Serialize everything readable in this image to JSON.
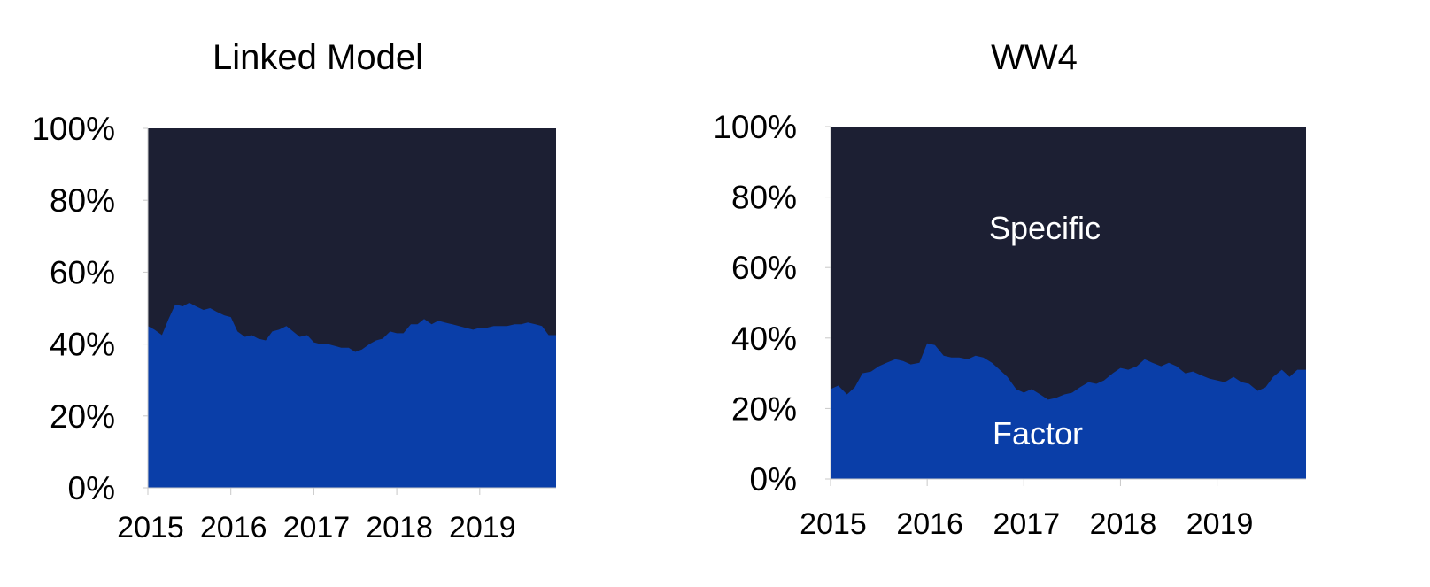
{
  "chart_data": [
    {
      "type": "area",
      "title": "Linked Model",
      "stacked": true,
      "xlabel": "",
      "ylabel": "",
      "x_tick_labels": [
        "2015",
        "2016",
        "2017",
        "2018",
        "2019"
      ],
      "x_tick_values": [
        2015,
        2016,
        2017,
        2018,
        2019
      ],
      "xlim": [
        2015,
        2019.92
      ],
      "ylim": [
        0,
        100
      ],
      "y_tick_labels": [
        "0%",
        "20%",
        "40%",
        "60%",
        "80%",
        "100%"
      ],
      "y_tick_values": [
        0,
        20,
        40,
        60,
        80,
        100
      ],
      "grid": false,
      "legend": "none",
      "series": [
        {
          "name": "",
          "color": "#0a3ea8",
          "x": [
            2015.0,
            2015.08,
            2015.17,
            2015.25,
            2015.33,
            2015.42,
            2015.5,
            2015.58,
            2015.67,
            2015.75,
            2015.83,
            2015.92,
            2016.0,
            2016.08,
            2016.17,
            2016.25,
            2016.33,
            2016.42,
            2016.5,
            2016.58,
            2016.67,
            2016.75,
            2016.83,
            2016.92,
            2017.0,
            2017.08,
            2017.17,
            2017.25,
            2017.33,
            2017.42,
            2017.5,
            2017.58,
            2017.67,
            2017.75,
            2017.83,
            2017.92,
            2018.0,
            2018.08,
            2018.17,
            2018.25,
            2018.33,
            2018.42,
            2018.5,
            2018.58,
            2018.67,
            2018.75,
            2018.83,
            2018.92,
            2019.0,
            2019.08,
            2019.17,
            2019.25,
            2019.33,
            2019.42,
            2019.5,
            2019.58,
            2019.67,
            2019.75,
            2019.83,
            2019.92
          ],
          "values": [
            45,
            44,
            42.5,
            47,
            51,
            50.5,
            51.5,
            50.5,
            49.5,
            50,
            49,
            48,
            47.5,
            43.5,
            42,
            42.5,
            41.5,
            41,
            43.5,
            44,
            45,
            43.5,
            42,
            42.5,
            40.5,
            40,
            40,
            39.5,
            39,
            39,
            37.8,
            38.5,
            40,
            41,
            41.5,
            43.5,
            43,
            43,
            45.5,
            45.5,
            47,
            45.5,
            46.5,
            46,
            45.5,
            45,
            44.5,
            44,
            44.5,
            44.5,
            45,
            45,
            45,
            45.5,
            45.5,
            46,
            45.5,
            45,
            42.5,
            42.5
          ]
        },
        {
          "name": "",
          "color": "#1c1f33",
          "values": "remainder to 100%"
        }
      ]
    },
    {
      "type": "area",
      "title": "WW4",
      "stacked": true,
      "xlabel": "",
      "ylabel": "",
      "x_tick_labels": [
        "2015",
        "2016",
        "2017",
        "2018",
        "2019"
      ],
      "x_tick_values": [
        2015,
        2016,
        2017,
        2018,
        2019
      ],
      "xlim": [
        2015,
        2019.92
      ],
      "ylim": [
        0,
        100
      ],
      "y_tick_labels": [
        "0%",
        "20%",
        "40%",
        "60%",
        "80%",
        "100%"
      ],
      "y_tick_values": [
        0,
        20,
        40,
        60,
        80,
        100
      ],
      "grid": false,
      "legend": "none",
      "annotations": [
        "Specific",
        "Factor"
      ],
      "series": [
        {
          "name": "Factor",
          "color": "#0a3ea8",
          "x": [
            2015.0,
            2015.08,
            2015.17,
            2015.25,
            2015.33,
            2015.42,
            2015.5,
            2015.58,
            2015.67,
            2015.75,
            2015.83,
            2015.92,
            2016.0,
            2016.08,
            2016.17,
            2016.25,
            2016.33,
            2016.42,
            2016.5,
            2016.58,
            2016.67,
            2016.75,
            2016.83,
            2016.92,
            2017.0,
            2017.08,
            2017.17,
            2017.25,
            2017.33,
            2017.42,
            2017.5,
            2017.58,
            2017.67,
            2017.75,
            2017.83,
            2017.92,
            2018.0,
            2018.08,
            2018.17,
            2018.25,
            2018.33,
            2018.42,
            2018.5,
            2018.58,
            2018.67,
            2018.75,
            2018.83,
            2018.92,
            2019.0,
            2019.08,
            2019.17,
            2019.25,
            2019.33,
            2019.42,
            2019.5,
            2019.58,
            2019.67,
            2019.75,
            2019.83,
            2019.92
          ],
          "values": [
            25.5,
            26.5,
            24,
            26,
            30,
            30.5,
            32,
            33,
            34,
            33.5,
            32.5,
            33,
            38.5,
            38,
            35,
            34.5,
            34.5,
            34,
            35,
            34.5,
            33,
            31,
            29,
            25.5,
            24.5,
            25.5,
            24,
            22.5,
            23,
            24,
            24.5,
            26,
            27.5,
            27,
            28,
            30,
            31.5,
            31,
            32,
            34,
            33,
            32,
            33,
            32,
            30,
            30.5,
            29.5,
            28.5,
            28,
            27.5,
            29,
            27.5,
            27,
            25,
            26,
            29,
            31,
            29,
            31,
            31
          ]
        },
        {
          "name": "Specific",
          "color": "#1c1f33",
          "values": "remainder to 100%"
        }
      ]
    }
  ]
}
